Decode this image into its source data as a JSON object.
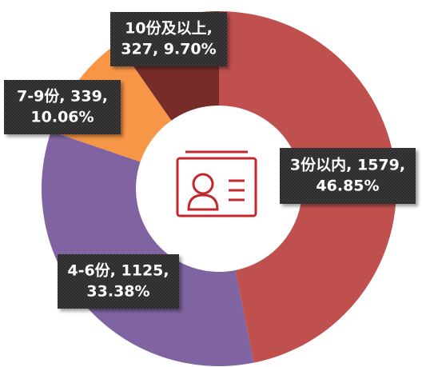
{
  "chart_data": {
    "type": "donut",
    "values": [
      1579,
      1125,
      339,
      327
    ],
    "colors": [
      "#c0504d",
      "#8064a2",
      "#f79646",
      "#772c2a"
    ],
    "labels": [
      [
        "3份以内, 1579,",
        "46.85%"
      ],
      [
        "4-6份, 1125,",
        "33.38%"
      ],
      [
        "7-9份, 339,",
        "10.06%"
      ],
      [
        "10份及以上,",
        "327, 9.70%"
      ]
    ]
  }
}
